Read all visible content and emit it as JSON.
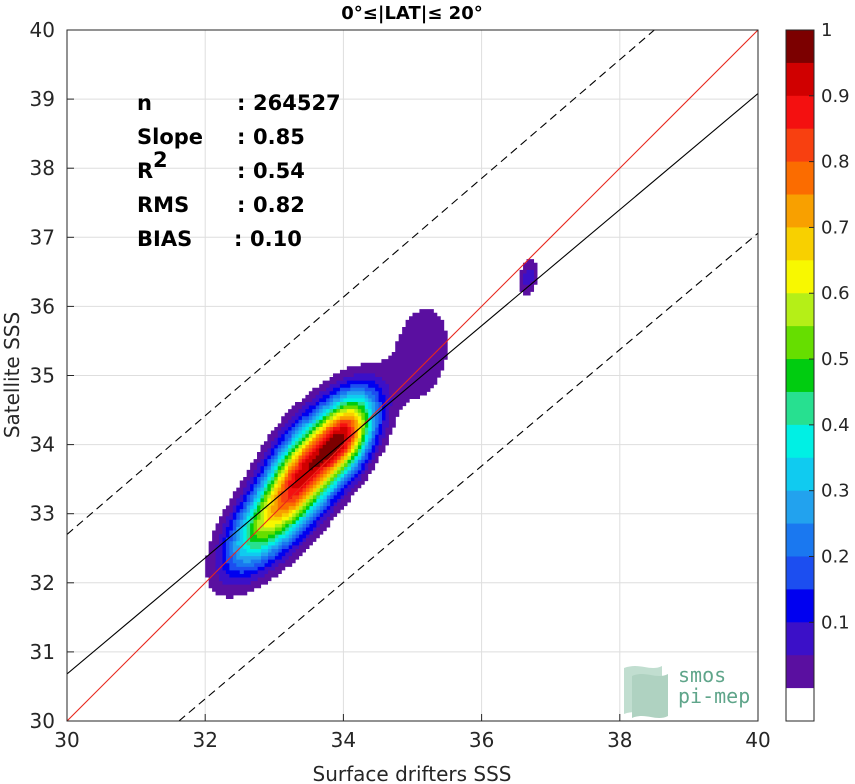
{
  "chart_data": {
    "type": "scatter",
    "title": "0°≤|LAT|≤ 20°",
    "xlabel": "Surface drifters SSS",
    "ylabel": "Satellite SSS",
    "xlim": [
      30,
      40
    ],
    "ylim": [
      30,
      40
    ],
    "x_ticks": [
      "30",
      "32",
      "34",
      "36",
      "38",
      "40"
    ],
    "y_ticks": [
      "30",
      "31",
      "32",
      "33",
      "34",
      "35",
      "36",
      "37",
      "38",
      "39",
      "40"
    ],
    "grid": true,
    "stats": [
      {
        "label": "n",
        "sep": ":",
        "value": "264527"
      },
      {
        "label": "Slope",
        "sep": ":",
        "value": "0.85"
      },
      {
        "label": "R",
        "sup": "2",
        "sep": ":",
        "value": "0.54"
      },
      {
        "label": "RMS",
        "sep": ":",
        "value": "0.82"
      },
      {
        "label": "BIAS",
        "sep": ":",
        "value": "0.10"
      }
    ],
    "lines": [
      {
        "name": "identity",
        "color": "#e8261c",
        "style": "solid",
        "x": [
          30,
          40
        ],
        "y": [
          30,
          40
        ]
      },
      {
        "name": "fit",
        "color": "#000000",
        "style": "solid",
        "x": [
          30,
          40
        ],
        "y": [
          30.68,
          39.08
        ]
      },
      {
        "name": "upper",
        "color": "#000000",
        "style": "dashed",
        "x": [
          30,
          38.5
        ],
        "y": [
          32.7,
          40.0
        ]
      },
      {
        "name": "lower",
        "color": "#000000",
        "style": "dashed",
        "x": [
          31.62,
          40
        ],
        "y": [
          30.0,
          37.06
        ]
      }
    ],
    "density_levels": [
      0.05,
      0.1,
      0.15,
      0.2,
      0.25,
      0.3,
      0.35,
      0.4,
      0.45,
      0.5,
      0.55,
      0.6,
      0.65,
      0.7,
      0.75,
      0.8,
      0.85,
      0.9,
      0.95,
      1.0
    ],
    "density_blobs": [
      {
        "cx": 33.35,
        "cy": 33.5,
        "sx": 0.38,
        "sy": 0.55,
        "rho": 0.55,
        "amp": 1.0
      },
      {
        "cx": 34.0,
        "cy": 34.12,
        "sx": 0.3,
        "sy": 0.42,
        "rho": 0.45,
        "amp": 0.9
      },
      {
        "cx": 32.7,
        "cy": 32.7,
        "sx": 0.35,
        "sy": 0.45,
        "rho": 0.55,
        "amp": 0.45
      },
      {
        "cx": 35.1,
        "cy": 35.3,
        "sx": 0.35,
        "sy": 0.6,
        "rho": 0.2,
        "amp": 0.1
      },
      {
        "cx": 36.65,
        "cy": 36.4,
        "sx": 0.1,
        "sy": 0.2,
        "rho": 0.3,
        "amp": 0.14
      }
    ],
    "colorbar": {
      "ticks": [
        "0.1",
        "0.2",
        "0.3",
        "0.4",
        "0.5",
        "0.6",
        "0.7",
        "0.8",
        "0.9",
        "1"
      ],
      "colors": [
        "#ffffff",
        "#5a0fa0",
        "#3b10c8",
        "#0000f0",
        "#1c4ef0",
        "#1a78f0",
        "#22a2ee",
        "#10cbf0",
        "#00f0e4",
        "#27e090",
        "#00cc10",
        "#66de00",
        "#b5ef17",
        "#f8f800",
        "#f8d000",
        "#f8a000",
        "#fb6c00",
        "#f84010",
        "#f41010",
        "#d00000",
        "#7c0000"
      ]
    }
  },
  "logo": {
    "line1": "smos",
    "line2": "pi-mep",
    "color": "#5fa58a"
  }
}
